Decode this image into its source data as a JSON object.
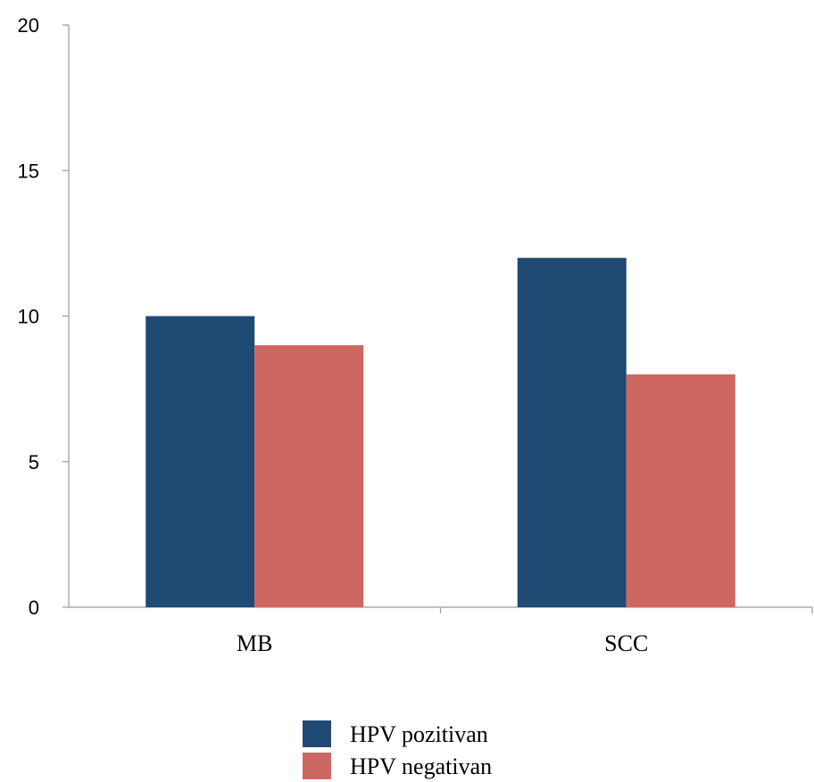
{
  "chart_data": {
    "type": "bar",
    "categories": [
      "MB",
      "SCC"
    ],
    "series": [
      {
        "name": "HPV pozitivan",
        "values": [
          10,
          12
        ],
        "color": "#1f4a73"
      },
      {
        "name": "HPV negativan",
        "values": [
          9,
          8
        ],
        "color": "#cd6761"
      }
    ],
    "yticks": [
      "0",
      "5",
      "10",
      "15",
      "20"
    ],
    "ylim": [
      0,
      20
    ],
    "title": "",
    "xlabel": "",
    "ylabel": "",
    "grid": false,
    "legend_position": "bottom-center"
  }
}
